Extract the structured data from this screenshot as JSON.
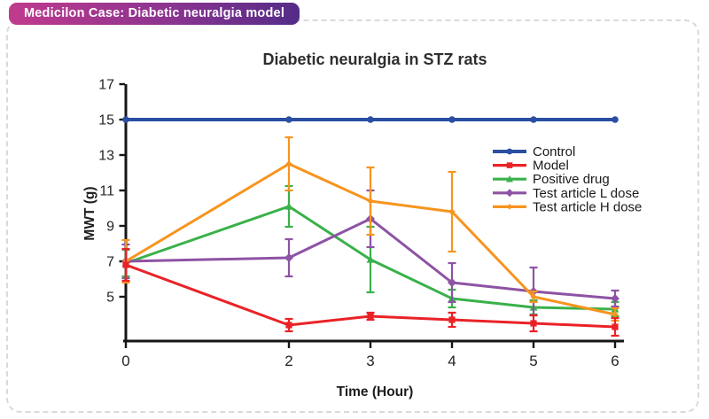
{
  "page": {
    "badge": "Medicilon Case: Diabetic neuralgia model"
  },
  "chart_data": {
    "type": "line",
    "title": "Diabetic neuralgia in STZ rats",
    "xlabel": "Time (Hour)",
    "ylabel": "MWT (g)",
    "x": [
      0,
      2,
      3,
      4,
      5,
      6
    ],
    "xticks": [
      0,
      2,
      3,
      4,
      5,
      6
    ],
    "yticks": [
      5,
      7,
      9,
      11,
      13,
      15,
      17
    ],
    "xlim": [
      0,
      6
    ],
    "ylim": [
      2.5,
      17
    ],
    "grid": false,
    "legend_position": "right",
    "error_bars": true,
    "axis_color": "#161616",
    "series": [
      {
        "name": "Control",
        "color": "#2a4fa2",
        "marker": "circle",
        "values": [
          15,
          15,
          15,
          15,
          15,
          15
        ],
        "errors": [
          0,
          0,
          0,
          0,
          0,
          0
        ]
      },
      {
        "name": "Model",
        "color": "#ea2227",
        "marker": "square",
        "values": [
          6.8,
          3.4,
          3.9,
          3.7,
          3.5,
          3.3
        ],
        "errors": [
          0.9,
          0.35,
          0.2,
          0.4,
          0.45,
          0.5
        ]
      },
      {
        "name": "Positive drug",
        "color": "#39b14a",
        "marker": "triangle",
        "values": [
          6.9,
          10.1,
          7.1,
          4.9,
          4.4,
          4.3
        ],
        "errors": [
          0.75,
          1.15,
          1.85,
          0.5,
          0.4,
          0.4
        ]
      },
      {
        "name": "Test article L dose",
        "color": "#8d53a4",
        "marker": "diamond",
        "values": [
          7.0,
          7.2,
          9.4,
          5.8,
          5.3,
          4.9
        ],
        "errors": [
          0.95,
          1.05,
          1.6,
          1.1,
          1.35,
          0.45
        ]
      },
      {
        "name": "Test article H dose",
        "color": "#f7941e",
        "marker": "diamond-small",
        "values": [
          7.0,
          12.5,
          10.4,
          9.8,
          5.0,
          4.0
        ],
        "errors": [
          1.2,
          1.5,
          1.9,
          2.25,
          0.3,
          0.35
        ]
      }
    ]
  }
}
